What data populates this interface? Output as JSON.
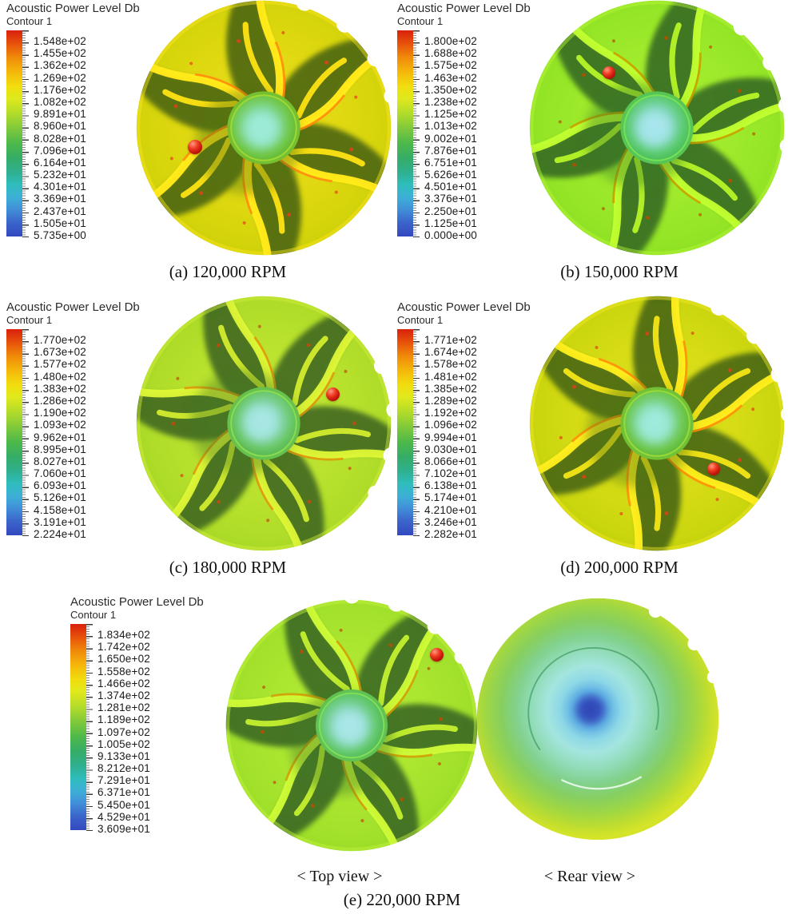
{
  "figure": {
    "panels": [
      {
        "id": "a",
        "caption": "(a) 120,000 RPM",
        "legend": {
          "title": "Acoustic Power Level Db",
          "subtitle": "Contour 1",
          "values": [
            "1.548e+02",
            "1.455e+02",
            "1.362e+02",
            "1.269e+02",
            "1.176e+02",
            "1.082e+02",
            "9.891e+01",
            "8.960e+01",
            "8.028e+01",
            "7.096e+01",
            "6.164e+01",
            "5.232e+01",
            "4.301e+01",
            "3.369e+01",
            "2.437e+01",
            "1.505e+01",
            "5.735e+00"
          ]
        }
      },
      {
        "id": "b",
        "caption": "(b) 150,000 RPM",
        "legend": {
          "title": "Acoustic Power Level Db",
          "subtitle": "Contour 1",
          "values": [
            "1.800e+02",
            "1.688e+02",
            "1.575e+02",
            "1.463e+02",
            "1.350e+02",
            "1.238e+02",
            "1.125e+02",
            "1.013e+02",
            "9.002e+01",
            "7.876e+01",
            "6.751e+01",
            "5.626e+01",
            "4.501e+01",
            "3.376e+01",
            "2.250e+01",
            "1.125e+01",
            "0.000e+00"
          ]
        }
      },
      {
        "id": "c",
        "caption": "(c) 180,000 RPM",
        "legend": {
          "title": "Acoustic Power Level Db",
          "subtitle": "Contour 1",
          "values": [
            "1.770e+02",
            "1.673e+02",
            "1.577e+02",
            "1.480e+02",
            "1.383e+02",
            "1.286e+02",
            "1.190e+02",
            "1.093e+02",
            "9.962e+01",
            "8.995e+01",
            "8.027e+01",
            "7.060e+01",
            "6.093e+01",
            "5.126e+01",
            "4.158e+01",
            "3.191e+01",
            "2.224e+01"
          ]
        }
      },
      {
        "id": "d",
        "caption": "(d) 200,000 RPM",
        "legend": {
          "title": "Acoustic Power Level Db",
          "subtitle": "Contour 1",
          "values": [
            "1.771e+02",
            "1.674e+02",
            "1.578e+02",
            "1.481e+02",
            "1.385e+02",
            "1.289e+02",
            "1.192e+02",
            "1.096e+02",
            "9.994e+01",
            "9.030e+01",
            "8.066e+01",
            "7.102e+01",
            "6.138e+01",
            "5.174e+01",
            "4.210e+01",
            "3.246e+01",
            "2.282e+01"
          ]
        }
      },
      {
        "id": "e",
        "caption": "(e) 220,000 RPM",
        "view_labels": [
          "< Top view >",
          "< Rear view >"
        ],
        "legend": {
          "title": "Acoustic Power Level Db",
          "subtitle": "Contour 1",
          "values": [
            "1.834e+02",
            "1.742e+02",
            "1.650e+02",
            "1.558e+02",
            "1.466e+02",
            "1.374e+02",
            "1.281e+02",
            "1.189e+02",
            "1.097e+02",
            "1.005e+02",
            "9.133e+01",
            "8.212e+01",
            "7.291e+01",
            "6.371e+01",
            "5.450e+01",
            "4.529e+01",
            "3.609e+01"
          ]
        }
      }
    ]
  },
  "colors": {
    "colorbar_max": "#d9210d",
    "colorbar_min": "#3348bf",
    "marker_red": "#c3150c",
    "impeller_base_green": "#c7de2d"
  },
  "chart_data": [
    {
      "type": "heatmap",
      "title": "Acoustic Power Level Db",
      "subtitle": "Contour 1",
      "caption": "(a) 120,000 RPM",
      "colormap": "rainbow (red = max, blue = min)",
      "legend_position": "left",
      "colorbar_ticks_db": [
        154.8,
        145.5,
        136.2,
        126.9,
        117.6,
        108.2,
        98.91,
        89.6,
        80.28,
        70.96,
        61.64,
        52.32,
        43.01,
        33.69,
        24.37,
        15.05,
        5.735
      ],
      "range_db": [
        5.735,
        154.8
      ],
      "annotation": "red sphere receiver point on impeller, lower-left of hub"
    },
    {
      "type": "heatmap",
      "title": "Acoustic Power Level Db",
      "subtitle": "Contour 1",
      "caption": "(b) 150,000 RPM",
      "colormap": "rainbow (red = max, blue = min)",
      "legend_position": "left",
      "colorbar_ticks_db": [
        180.0,
        168.8,
        157.5,
        146.3,
        135.0,
        123.8,
        112.5,
        101.3,
        90.02,
        78.76,
        67.51,
        56.26,
        45.01,
        33.76,
        22.5,
        11.25,
        0.0
      ],
      "range_db": [
        0.0,
        180.0
      ],
      "annotation": "red sphere receiver point on impeller, upper-left of hub"
    },
    {
      "type": "heatmap",
      "title": "Acoustic Power Level Db",
      "subtitle": "Contour 1",
      "caption": "(c) 180,000 RPM",
      "colormap": "rainbow (red = max, blue = min)",
      "legend_position": "left",
      "colorbar_ticks_db": [
        177.0,
        167.3,
        157.7,
        148.0,
        138.3,
        128.6,
        119.0,
        109.3,
        99.62,
        89.95,
        80.27,
        70.6,
        60.93,
        51.26,
        41.58,
        31.91,
        22.24
      ],
      "range_db": [
        22.24,
        177.0
      ],
      "annotation": "red sphere receiver point on impeller, right of hub"
    },
    {
      "type": "heatmap",
      "title": "Acoustic Power Level Db",
      "subtitle": "Contour 1",
      "caption": "(d) 200,000 RPM",
      "colormap": "rainbow (red = max, blue = min)",
      "legend_position": "left",
      "colorbar_ticks_db": [
        177.1,
        167.4,
        157.8,
        148.1,
        138.5,
        128.9,
        119.2,
        109.6,
        99.94,
        90.3,
        80.66,
        71.02,
        61.38,
        51.74,
        42.1,
        32.46,
        22.82
      ],
      "range_db": [
        22.82,
        177.1
      ],
      "annotation": "red sphere receiver point on impeller, lower-right of hub"
    },
    {
      "type": "heatmap",
      "title": "Acoustic Power Level Db",
      "subtitle": "Contour 1",
      "caption": "(e) 220,000 RPM",
      "views": [
        "< Top view >",
        "< Rear view >"
      ],
      "colormap": "rainbow (red = max, blue = min)",
      "legend_position": "left",
      "colorbar_ticks_db": [
        183.4,
        174.2,
        165.0,
        155.8,
        146.6,
        137.4,
        128.1,
        118.9,
        109.7,
        100.5,
        91.33,
        82.12,
        72.91,
        63.71,
        54.5,
        45.29,
        36.09
      ],
      "range_db": [
        36.09,
        183.4
      ],
      "annotation": "red sphere receiver point near top-right rim; rear view shows blue low-level core at disk center"
    }
  ]
}
